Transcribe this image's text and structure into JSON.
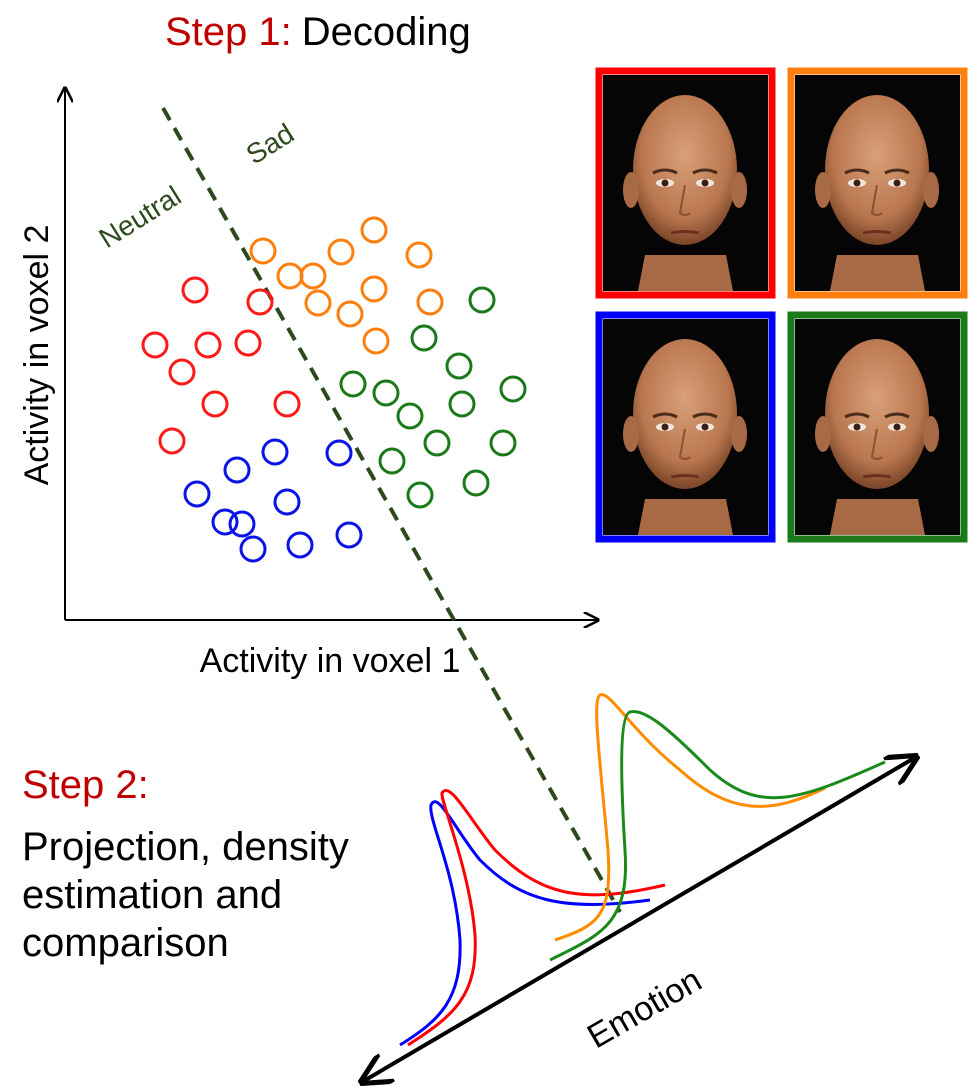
{
  "step1": {
    "label": "Step 1:",
    "title": "Decoding"
  },
  "scatter": {
    "y_axis_label": "Activity in voxel 2",
    "x_axis_label": "Activity in voxel 1",
    "boundary_left": "Neutral",
    "boundary_right": "Sad"
  },
  "step2": {
    "label": "Step 2:",
    "lines": [
      "Projection, density",
      "estimation and",
      "comparison"
    ]
  },
  "projection": {
    "axis_label": "Emotion"
  }
}
